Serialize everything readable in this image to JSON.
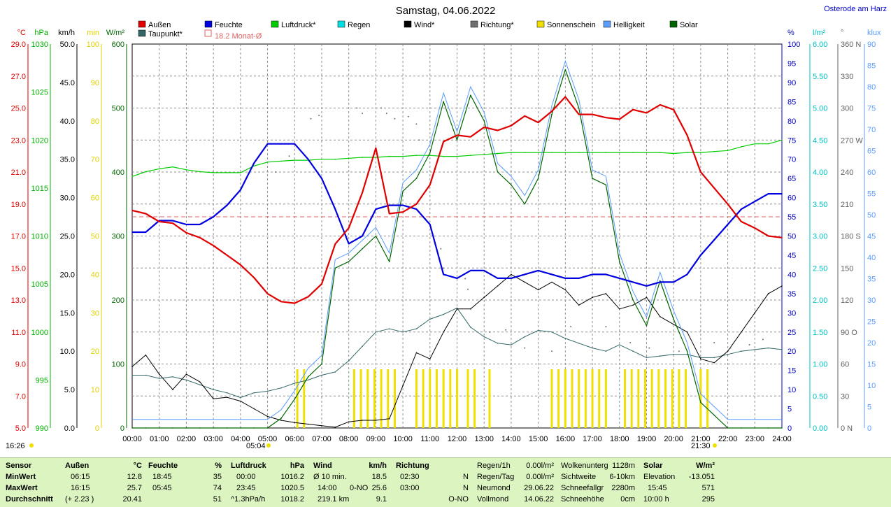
{
  "chart_data": {
    "type": "line",
    "title": "Samstag, 04.06.2022",
    "location": "Osterode am Harz",
    "x_hours": [
      0,
      0.5,
      1,
      1.5,
      2,
      2.5,
      3,
      3.5,
      4,
      4.5,
      5,
      5.5,
      6,
      6.5,
      7,
      7.5,
      8,
      8.5,
      9,
      9.5,
      10,
      10.5,
      11,
      11.5,
      12,
      12.5,
      13,
      13.5,
      14,
      14.5,
      15,
      15.5,
      16,
      16.5,
      17,
      17.5,
      18,
      18.5,
      19,
      19.5,
      20,
      20.5,
      21,
      21.5,
      22,
      22.5,
      23,
      23.5,
      24
    ],
    "x_ticks": [
      "00:00",
      "01:00",
      "02:00",
      "03:00",
      "04:00",
      "05:00",
      "06:00",
      "07:00",
      "08:00",
      "09:00",
      "10:00",
      "11:00",
      "12:00",
      "13:00",
      "14:00",
      "15:00",
      "16:00",
      "17:00",
      "18:00",
      "19:00",
      "20:00",
      "21:00",
      "22:00",
      "23:00",
      "24:00"
    ],
    "series": [
      {
        "name": "Außen",
        "unit": "°C",
        "color": "#e00000",
        "values": [
          18.6,
          18.4,
          17.9,
          17.8,
          17.2,
          16.9,
          16.4,
          15.8,
          15.2,
          14.4,
          13.4,
          12.9,
          12.8,
          13.2,
          14.0,
          16.5,
          17.5,
          19.7,
          22.5,
          18.4,
          18.5,
          19.0,
          20.2,
          22.9,
          23.3,
          23.2,
          23.8,
          23.6,
          23.9,
          24.5,
          24.1,
          24.8,
          25.7,
          24.6,
          24.6,
          24.4,
          24.3,
          24.9,
          24.7,
          25.2,
          24.9,
          23.3,
          21.0,
          20.0,
          19.0,
          17.9,
          17.5,
          17.0,
          16.9
        ],
        "marks": [
          "0",
          "0",
          "0",
          "0",
          "0",
          "0",
          "0",
          "0",
          "0",
          "0",
          "0",
          "0",
          "0",
          "0",
          "0",
          "0",
          "0",
          "0",
          "0",
          "0",
          "0",
          "0",
          "0",
          "0",
          "0",
          "0",
          "0",
          "0",
          "0",
          "0",
          "0",
          "0",
          "0",
          "0",
          "0",
          "0",
          "0",
          "0",
          "0",
          "0",
          "0",
          "0",
          "0",
          "0",
          "0",
          "0",
          "0",
          "0",
          "0"
        ]
      },
      {
        "name": "Feuchte",
        "unit": "%",
        "color": "#0000e0",
        "values": [
          51,
          51,
          54,
          54,
          53,
          53,
          55,
          58,
          62,
          69,
          74,
          74,
          74,
          70,
          65,
          57,
          48,
          50,
          57,
          58,
          58,
          57,
          53,
          40,
          39,
          41,
          41,
          39,
          39,
          40,
          41,
          40,
          39,
          39,
          40,
          40,
          39,
          38,
          37,
          38,
          38,
          40,
          45,
          49,
          53,
          57,
          59,
          61,
          61
        ]
      },
      {
        "name": "Luftdruck",
        "unit": "hPa",
        "color": "#00cc00",
        "values": [
          1016.2,
          1016.7,
          1017.0,
          1017.2,
          1016.9,
          1016.7,
          1016.6,
          1016.6,
          1016.6,
          1017.3,
          1017.7,
          1017.8,
          1017.9,
          1017.9,
          1018.0,
          1018.0,
          1018.1,
          1018.2,
          1018.2,
          1018.3,
          1018.3,
          1018.4,
          1018.4,
          1018.3,
          1018.3,
          1018.4,
          1018.5,
          1018.6,
          1018.7,
          1018.7,
          1018.7,
          1018.7,
          1018.7,
          1018.7,
          1018.7,
          1018.7,
          1018.7,
          1018.7,
          1018.7,
          1018.7,
          1018.6,
          1018.7,
          1018.7,
          1018.8,
          1018.9,
          1019.3,
          1019.6,
          1019.6,
          1020.0
        ]
      },
      {
        "name": "Wind",
        "unit": "km/h",
        "color": "#000000",
        "values": [
          8,
          9.5,
          7,
          5,
          7,
          6,
          3.8,
          4,
          3.5,
          2.5,
          1.5,
          1,
          0.7,
          0.5,
          0.3,
          0.1,
          0.8,
          1,
          1,
          1.2,
          5.5,
          9.8,
          9,
          12.5,
          15.5,
          15.5,
          17,
          18.5,
          20,
          19,
          18,
          19,
          18,
          16,
          17,
          17.5,
          15.5,
          16,
          17,
          14.5,
          13.5,
          12.5,
          9,
          8.5,
          10,
          12.5,
          15,
          17.5,
          18.5
        ]
      },
      {
        "name": "Regen",
        "unit": "l/m²",
        "color": "#00e0e0",
        "values": [
          0,
          0,
          0,
          0,
          0,
          0,
          0,
          0,
          0,
          0,
          0,
          0,
          0,
          0,
          0,
          0,
          0,
          0,
          0,
          0,
          0,
          0,
          0,
          0,
          0,
          0,
          0,
          0,
          0,
          0,
          0,
          0,
          0,
          0,
          0,
          0,
          0,
          0,
          0,
          0,
          0,
          0,
          0,
          0,
          0,
          0,
          0,
          0,
          0
        ]
      },
      {
        "name": "Solar",
        "unit": "W/m²",
        "color": "#006400",
        "values": [
          0,
          0,
          0,
          0,
          0,
          0,
          0,
          0,
          0,
          0,
          0,
          15,
          45,
          80,
          100,
          250,
          260,
          280,
          300,
          260,
          370,
          390,
          430,
          510,
          450,
          520,
          480,
          400,
          380,
          350,
          390,
          490,
          560,
          500,
          390,
          380,
          260,
          200,
          160,
          230,
          170,
          120,
          40,
          20,
          0,
          0,
          0,
          0,
          0
        ]
      },
      {
        "name": "Taupunkt",
        "unit": "°C",
        "color": "#336666",
        "values": [
          8.3,
          8.3,
          8.1,
          8.2,
          8.0,
          7.7,
          7.4,
          7.2,
          6.9,
          7.2,
          7.3,
          7.5,
          7.8,
          8.0,
          8.3,
          8.5,
          9.2,
          10.1,
          11.0,
          11.2,
          11.0,
          11.2,
          11.8,
          12.1,
          12.5,
          11.3,
          10.7,
          10.3,
          10.2,
          10.7,
          11.1,
          11.0,
          10.6,
          10.3,
          10.0,
          9.8,
          10.2,
          9.8,
          9.4,
          9.5,
          9.6,
          9.6,
          9.4,
          9.4,
          9.6,
          9.8,
          9.9,
          10.0,
          9.9
        ]
      },
      {
        "name": "Sonnenschein",
        "unit": "min",
        "color": "#f0e000"
      },
      {
        "name": "Helligkeit",
        "unit": "klux",
        "color": "#5a9cff"
      },
      {
        "name": "Richtung",
        "unit": "°",
        "color": "#707070"
      }
    ],
    "legend_extra": "18.2 Monat-Ø",
    "monthly_avg_temp": 18.2,
    "sunshine_blocks": [
      [
        6.1,
        6.4
      ],
      [
        8.2,
        9.8
      ],
      [
        10.5,
        12.1
      ],
      [
        12.4,
        12.7
      ],
      [
        13.2,
        13.3
      ],
      [
        15.5,
        17.5
      ],
      [
        18.2,
        20.5
      ],
      [
        21.0,
        21.3
      ]
    ],
    "sunrise": "05:04",
    "sunset": "21:30",
    "now": "16:26",
    "left_axes": [
      {
        "unit": "°C",
        "color": "#e00000",
        "ticks": [
          "29.0",
          "27.0",
          "25.0",
          "23.0",
          "21.0",
          "19.0",
          "17.0",
          "15.0",
          "13.0",
          "11.0",
          "9.0",
          "7.0",
          "5.0"
        ]
      },
      {
        "unit": "hPa",
        "color": "#00b000",
        "ticks": [
          "1030",
          "1025",
          "1020",
          "1015",
          "1010",
          "1005",
          "1000",
          "995",
          "990"
        ]
      },
      {
        "unit": "km/h",
        "color": "#000000",
        "ticks": [
          "50.0",
          "45.0",
          "40.0",
          "35.0",
          "30.0",
          "25.0",
          "20.0",
          "15.0",
          "10.0",
          "5.0",
          "0.0"
        ]
      },
      {
        "unit": "min",
        "color": "#e0d000",
        "ticks": [
          "100",
          "90",
          "80",
          "70",
          "60",
          "50",
          "40",
          "30",
          "20",
          "10",
          "0"
        ]
      },
      {
        "unit": "W/m²",
        "color": "#006400",
        "ticks": [
          "600",
          "500",
          "400",
          "300",
          "200",
          "100",
          "0"
        ]
      }
    ],
    "right_axes": [
      {
        "unit": "%",
        "color": "#0000c0",
        "ticks": [
          "100",
          "95",
          "90",
          "85",
          "80",
          "75",
          "70",
          "65",
          "60",
          "55",
          "50",
          "45",
          "40",
          "35",
          "30",
          "25",
          "20",
          "15",
          "10",
          "5",
          "0"
        ]
      },
      {
        "unit": "l/m²",
        "color": "#00c0c0",
        "ticks": [
          "6.00",
          "5.50",
          "5.00",
          "4.50",
          "4.00",
          "3.50",
          "3.00",
          "2.50",
          "2.00",
          "1.50",
          "1.00",
          "0.50",
          "0.00"
        ]
      },
      {
        "unit": "°",
        "color": "#606060",
        "ticks": [
          "360 N",
          "330",
          "300",
          "270 W",
          "240",
          "210",
          "180 S",
          "150",
          "120",
          "90 O",
          "60",
          "30",
          "0 N"
        ]
      },
      {
        "unit": "klux",
        "color": "#5a9cff",
        "ticks": [
          "90",
          "85",
          "80",
          "75",
          "70",
          "65",
          "60",
          "55",
          "50",
          "45",
          "40",
          "35",
          "30",
          "25",
          "20",
          "15",
          "10",
          "5",
          "0"
        ]
      }
    ]
  },
  "stats": {
    "sensor": {
      "h": "Sensor",
      "r1": "MinWert",
      "r2": "MaxWert",
      "r3": "Durchschnitt"
    },
    "aussen": {
      "h": "Außen",
      "u": "°C",
      "t1": "06:15",
      "v1": "12.8",
      "t2": "16:15",
      "v2": "25.7",
      "t3": "(+ 2.23 )",
      "v3": "20.41"
    },
    "feuchte": {
      "h": "Feuchte",
      "u": "%",
      "t1": "18:45",
      "v1": "35",
      "t2": "05:45",
      "v2": "74",
      "v3": "51"
    },
    "luftdruck": {
      "h": "Luftdruck",
      "u": "hPa",
      "t1": "00:00",
      "v1": "1016.2",
      "t2": "23:45",
      "v2": "1020.5",
      "t3": "^1.3hPa/h",
      "v3": "1018.2"
    },
    "wind": {
      "h": "Wind",
      "u": "km/h",
      "t1": "Ø 10 min.",
      "v1": "18.5",
      "t2": "14:00",
      "d2": "0-NO",
      "v2": "25.6",
      "t3": "219.1 km",
      "v3": "9.1"
    },
    "richtung": {
      "h": "Richtung",
      "t1": "02:30",
      "v1": "N",
      "t2": "03:00",
      "v2": "N",
      "v3": "O-NO"
    },
    "regen": {
      "a1": "Regen/1h",
      "b1": "0.00l/m²",
      "a2": "Regen/Tag",
      "b2": "0.00l/m²",
      "a3": "Neumond",
      "b3": "29.06.22",
      "a4": "Vollmond",
      "b4": "14.06.22"
    },
    "wolken": {
      "a1": "Wolkenunterg",
      "b1": "1128m",
      "a2": "Sichtweite",
      "b2": "6-10km",
      "a3": "Schneefallgr",
      "b3": "2280m",
      "a4": "Schneehöhe",
      "b4": "0cm"
    },
    "solar": {
      "h": "Solar",
      "u": "W/m²",
      "a1": "Elevation",
      "b1": "-13.051",
      "a2": "15:45",
      "b2": "571",
      "a3": "10:00 h",
      "b3": "295"
    }
  }
}
